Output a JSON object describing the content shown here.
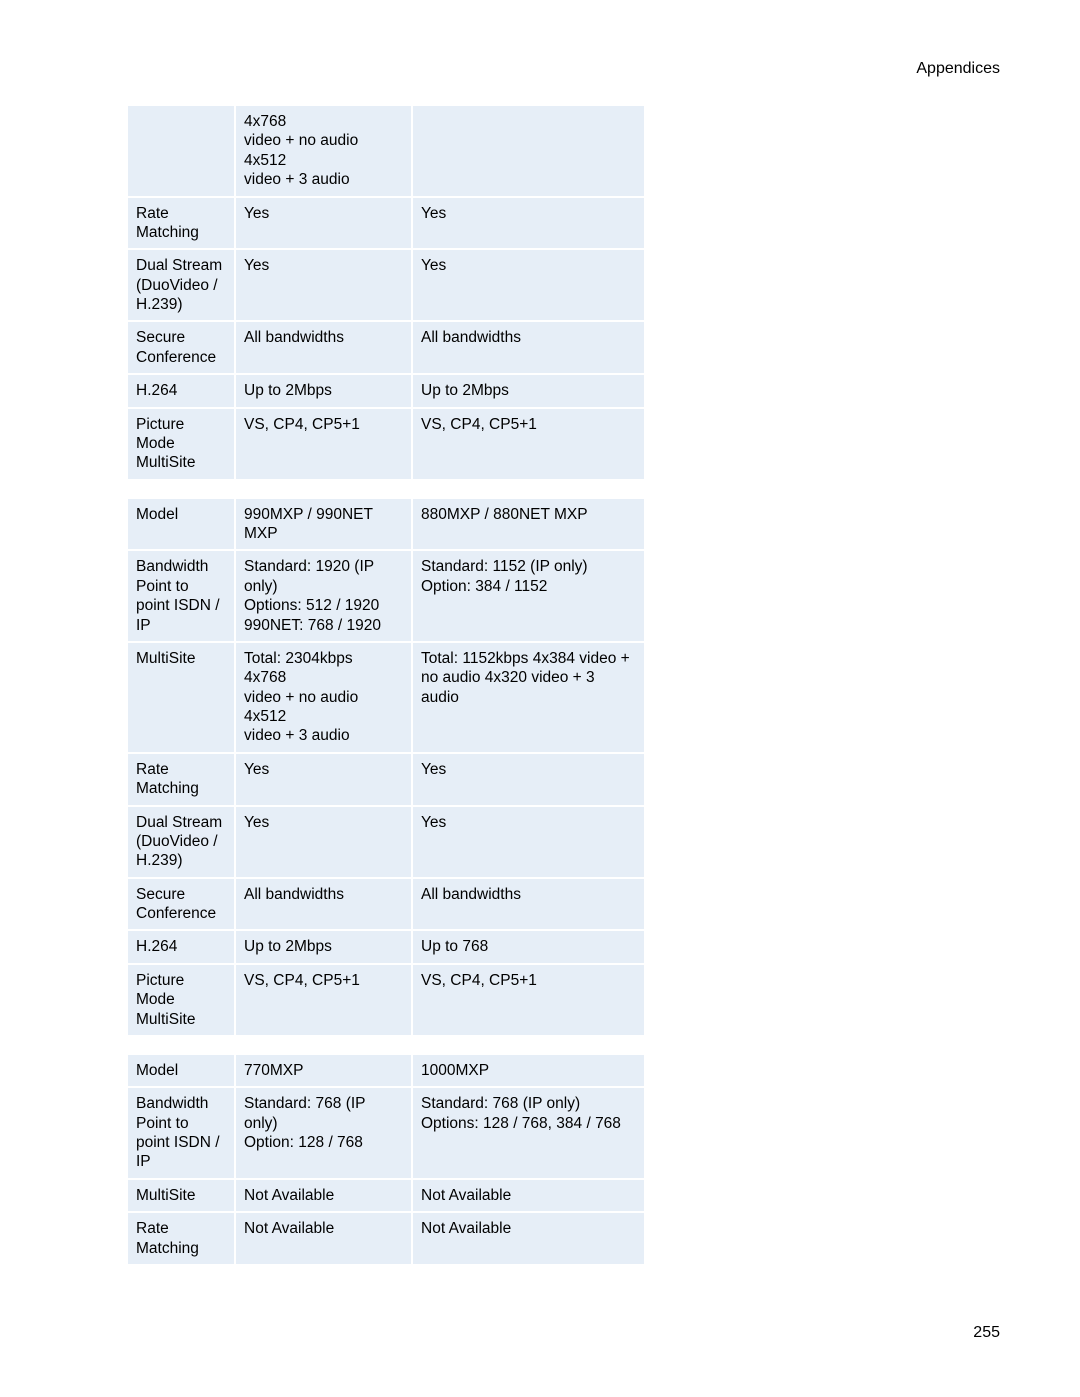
{
  "header": "Appendices",
  "page_number": "255",
  "colors": {
    "cell_bg": "#e6eef7",
    "border": "#ffffff",
    "text": "#000000",
    "page_bg": "#ffffff"
  },
  "table1": {
    "columns": [
      "label",
      "colA",
      "colB"
    ],
    "rows": [
      [
        "",
        "4x768\nvideo + no audio\n4x512\nvideo + 3 audio",
        ""
      ],
      [
        "Rate Matching",
        "Yes",
        "Yes"
      ],
      [
        "Dual Stream (DuoVideo / H.239)",
        "Yes",
        "Yes"
      ],
      [
        "Secure Conference",
        "All bandwidths",
        "All bandwidths"
      ],
      [
        "H.264",
        "Up to 2Mbps",
        "Up to 2Mbps"
      ],
      [
        "Picture Mode MultiSite",
        "VS, CP4, CP5+1",
        "VS, CP4, CP5+1"
      ]
    ]
  },
  "table2": {
    "columns": [
      "label",
      "colA",
      "colB"
    ],
    "rows": [
      [
        "Model",
        "990MXP / 990NET MXP",
        "880MXP / 880NET MXP"
      ],
      [
        "Bandwidth Point to point ISDN / IP",
        "Standard: 1920 (IP only)\nOptions: 512 / 1920\n990NET: 768 / 1920",
        "Standard: 1152 (IP only)\nOption: 384 / 1152"
      ],
      [
        "MultiSite",
        "Total: 2304kbps\n4x768\nvideo + no audio\n4x512\nvideo + 3 audio",
        "Total: 1152kbps 4x384 video + no audio 4x320 video + 3 audio"
      ],
      [
        "Rate Matching",
        "Yes",
        "Yes"
      ],
      [
        "Dual Stream (DuoVideo / H.239)",
        "Yes",
        "Yes"
      ],
      [
        "Secure Conference",
        "All bandwidths",
        "All bandwidths"
      ],
      [
        "H.264",
        "Up to 2Mbps",
        "Up to 768"
      ],
      [
        "Picture Mode MultiSite",
        "VS, CP4, CP5+1",
        "VS, CP4, CP5+1"
      ]
    ]
  },
  "table3": {
    "columns": [
      "label",
      "colA",
      "colB"
    ],
    "rows": [
      [
        "Model",
        "770MXP",
        "1000MXP"
      ],
      [
        "Bandwidth Point to point ISDN / IP",
        "Standard: 768 (IP only)\nOption: 128 / 768",
        "Standard: 768 (IP only)\nOptions:  128 / 768,  384 / 768"
      ],
      [
        "MultiSite",
        "Not Available",
        "Not Available"
      ],
      [
        "Rate Matching",
        "Not Available",
        "Not Available"
      ]
    ]
  }
}
